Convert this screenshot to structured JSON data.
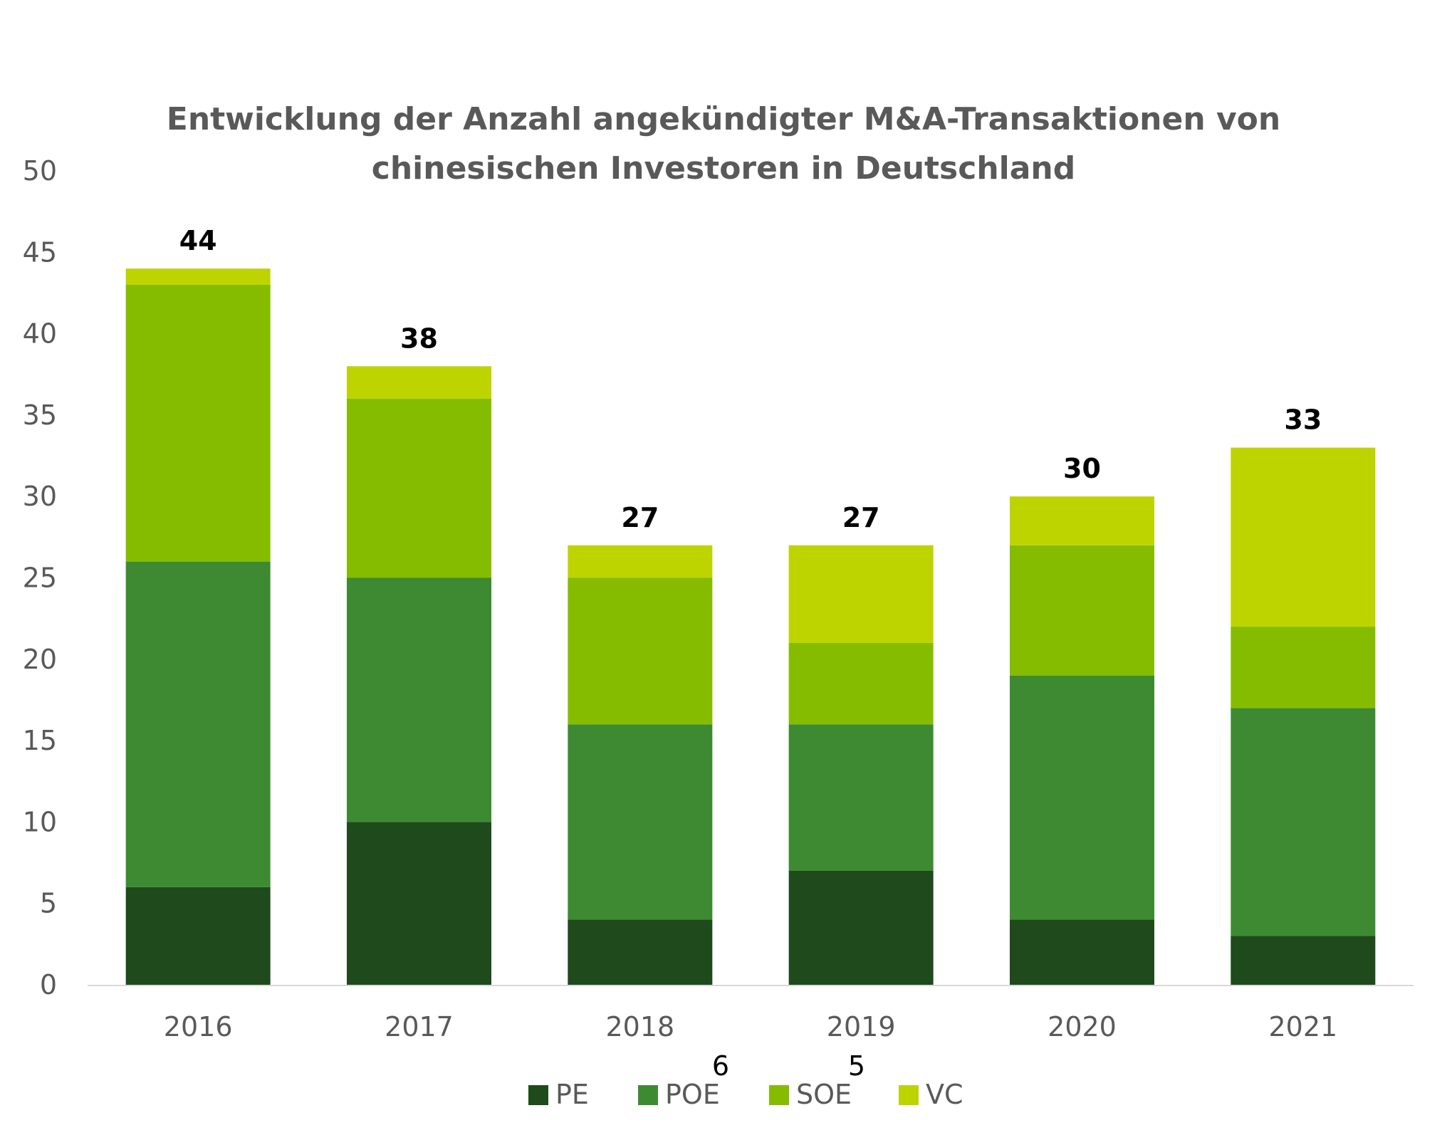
{
  "chart_data": {
    "type": "bar",
    "stacked": true,
    "title": "Entwicklung der Anzahl angekündigter M&A-Transaktionen von chinesischen Investoren in Deutschland",
    "title_lines": [
      "Entwicklung der Anzahl angekündigter M&A-Transaktionen von",
      "chinesischen Investoren in Deutschland"
    ],
    "categories": [
      "2016",
      "2017",
      "2018",
      "2019",
      "2020",
      "2021"
    ],
    "series": [
      {
        "name": "PE",
        "color": "#1e4a1c",
        "values": [
          6,
          10,
          4,
          7,
          4,
          3
        ]
      },
      {
        "name": "POE",
        "color": "#3d8a32",
        "values": [
          20,
          15,
          12,
          9,
          15,
          14
        ]
      },
      {
        "name": "SOE",
        "color": "#85bc00",
        "values": [
          17,
          11,
          9,
          5,
          8,
          5
        ]
      },
      {
        "name": "VC",
        "color": "#bdd400",
        "values": [
          1,
          2,
          2,
          6,
          3,
          11
        ]
      }
    ],
    "totals": [
      "44",
      "38",
      "27",
      "27",
      "30",
      "33"
    ],
    "ylim": [
      0,
      50
    ],
    "yticks": [
      "0",
      "5",
      "10",
      "15",
      "20",
      "25",
      "30",
      "35",
      "40",
      "45",
      "50"
    ],
    "grid": false,
    "legend_position": "bottom",
    "stray_labels": [
      "6",
      "5"
    ]
  }
}
